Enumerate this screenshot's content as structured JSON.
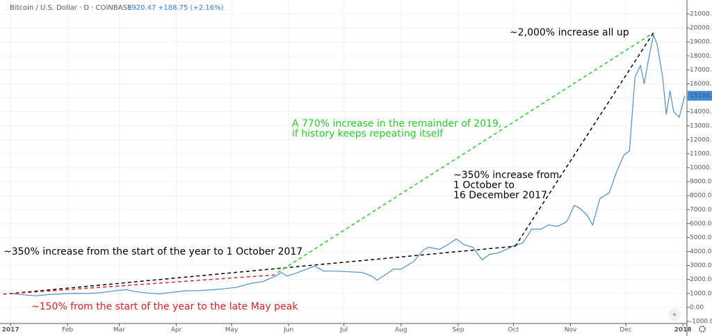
{
  "chart_data": {
    "type": "line",
    "symbol": "Bitcoin / U.S. Dollar · D · COINBASE",
    "last_quote": "8920.47",
    "quote_change": "+188.75 (+2.16%)",
    "price_label": "15144.99",
    "x": [
      0,
      7,
      14,
      21,
      28,
      35,
      42,
      49,
      56,
      63,
      67,
      74,
      81,
      88,
      95,
      102,
      109,
      116,
      123,
      130,
      137,
      144,
      147,
      150,
      154,
      160,
      165,
      170,
      177,
      184,
      191,
      196,
      199,
      203,
      208,
      212,
      219,
      224,
      227,
      233,
      238,
      242,
      246,
      251,
      256,
      260,
      265,
      270,
      273,
      278,
      283,
      288,
      292,
      297,
      302,
      306,
      309,
      313,
      316,
      320,
      325,
      329,
      333,
      336,
      339,
      342,
      344,
      346,
      349,
      351,
      354,
      356,
      358,
      360,
      363,
      366
    ],
    "series": [
      {
        "name": "BTCUSD",
        "color": "#4a8fc9",
        "values": [
          998,
          900,
          830,
          920,
          970,
          1010,
          1000,
          1050,
          1180,
          1270,
          1150,
          1030,
          970,
          1080,
          1190,
          1200,
          1260,
          1330,
          1450,
          1700,
          1850,
          2250,
          2500,
          2250,
          2400,
          2700,
          2950,
          2600,
          2600,
          2550,
          2500,
          2250,
          1950,
          2300,
          2750,
          2730,
          3300,
          4100,
          4300,
          4150,
          4550,
          4900,
          4500,
          4300,
          3400,
          3800,
          3900,
          4200,
          4400,
          4600,
          5600,
          5600,
          5900,
          5800,
          6150,
          7300,
          7100,
          6600,
          5900,
          7800,
          8200,
          9700,
          10900,
          11200,
          16500,
          17300,
          16000,
          17500,
          19500,
          18800,
          16500,
          13800,
          15500,
          14000,
          13600,
          15145
        ]
      }
    ],
    "xlim": [
      -5.7,
      367.2
    ],
    "xticks": [
      {
        "value": 0,
        "label": "2017"
      },
      {
        "value": 31,
        "label": "Feb"
      },
      {
        "value": 59,
        "label": "Mar"
      },
      {
        "value": 90,
        "label": "Apr"
      },
      {
        "value": 120,
        "label": "May"
      },
      {
        "value": 151,
        "label": "Jun"
      },
      {
        "value": 181,
        "label": "Jul"
      },
      {
        "value": 212,
        "label": "Aug"
      },
      {
        "value": 243,
        "label": "Sep"
      },
      {
        "value": 273,
        "label": "Oct"
      },
      {
        "value": 304,
        "label": "Nov"
      },
      {
        "value": 334,
        "label": "Dec"
      },
      {
        "value": 365,
        "label": "2018"
      }
    ],
    "ylim": [
      -1150,
      21600
    ],
    "yticks": [
      {
        "value": -1000,
        "label": "-1000.00"
      },
      {
        "value": 0,
        "label": "0.00"
      },
      {
        "value": 1000,
        "label": "1000.00"
      },
      {
        "value": 2000,
        "label": "2000.00"
      },
      {
        "value": 3000,
        "label": "3000.00"
      },
      {
        "value": 4000,
        "label": "4000.00"
      },
      {
        "value": 5000,
        "label": "5000.00"
      },
      {
        "value": 6000,
        "label": "6000.00"
      },
      {
        "value": 7000,
        "label": "7000.00"
      },
      {
        "value": 8000,
        "label": "8000.00"
      },
      {
        "value": 9000,
        "label": "9000.00"
      },
      {
        "value": 10000,
        "label": "10000.00"
      },
      {
        "value": 11000,
        "label": "11000.00"
      },
      {
        "value": 12000,
        "label": "12000.00"
      },
      {
        "value": 13000,
        "label": "13000.00"
      },
      {
        "value": 14000,
        "label": "14000.00"
      },
      {
        "value": 15000,
        "label": "15000.00"
      },
      {
        "value": 16000,
        "label": "16000.00"
      },
      {
        "value": 17000,
        "label": "17000.00"
      },
      {
        "value": 18000,
        "label": "18000.00"
      },
      {
        "value": 19000,
        "label": "19000.00"
      },
      {
        "value": 20000,
        "label": "20000.00"
      },
      {
        "value": 21000,
        "label": "21000.00"
      }
    ],
    "grid": true,
    "trend_lines": [
      {
        "color": "#000000",
        "x": [
          -4,
          274
        ],
        "values": [
          945,
          4378
        ]
      },
      {
        "color": "#e02020",
        "x": [
          -4,
          145
        ],
        "values": [
          945,
          2338
        ]
      },
      {
        "color": "#22cc22",
        "x": [
          145,
          349
        ],
        "values": [
          2488,
          19652
        ]
      },
      {
        "color": "#000000",
        "x": [
          274,
          349
        ],
        "values": [
          4378,
          19652
        ]
      }
    ],
    "annotations": [
      {
        "color": "#000000",
        "lines": [
          "~350% increase from the start of the year to 1 October 2017"
        ]
      },
      {
        "color": "#e02020",
        "lines": [
          "~150% from the start of the year to the late May peak"
        ]
      },
      {
        "color": "#22cc22",
        "lines": [
          "A 770% increase in the remainder of 2019,",
          "if history keeps repeating itself"
        ]
      },
      {
        "color": "#000000",
        "lines": [
          "~350% increase from",
          "1 October to",
          "16 December 2017"
        ]
      },
      {
        "color": "#000000",
        "lines": [
          "~2,000% increase all up"
        ]
      }
    ]
  }
}
